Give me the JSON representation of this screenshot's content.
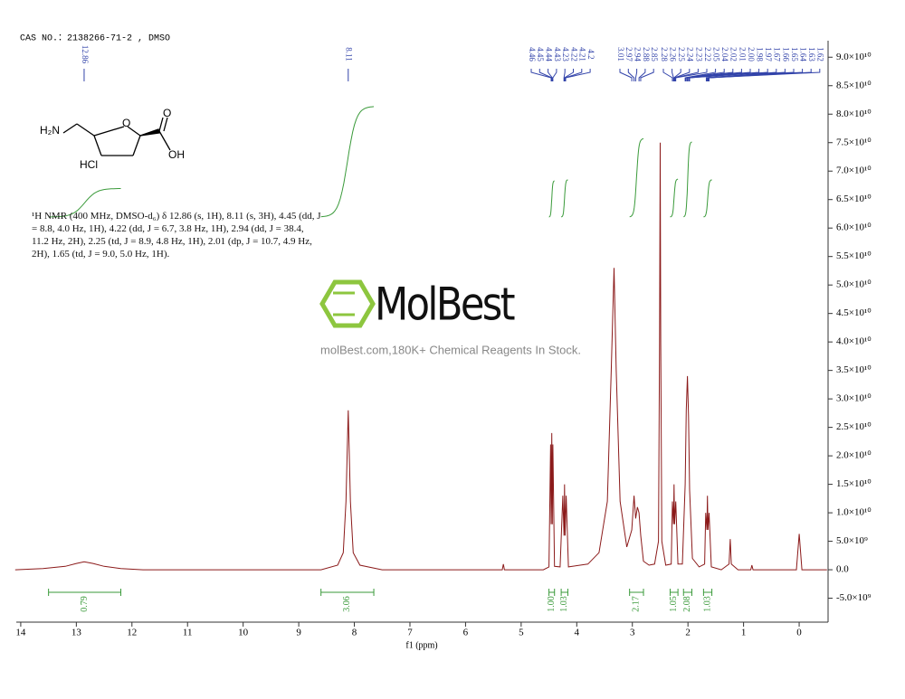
{
  "chart_data": {
    "type": "line",
    "note": "CAS NO.：2138266-71-2 , DMSO",
    "x_label": "f1 (ppm)",
    "color": "#8b1a1a",
    "x": [
      14.1,
      13.6,
      13.2,
      13.0,
      12.86,
      12.7,
      12.5,
      12.2,
      11.8,
      8.6,
      8.3,
      8.2,
      8.15,
      8.11,
      8.07,
      8.02,
      7.9,
      7.5,
      5.34,
      5.32,
      5.3,
      4.6,
      4.5,
      4.47,
      4.46,
      4.45,
      4.44,
      4.43,
      4.4,
      4.3,
      4.25,
      4.23,
      4.22,
      4.21,
      4.19,
      4.15,
      3.8,
      3.6,
      3.45,
      3.38,
      3.33,
      3.29,
      3.22,
      3.1,
      3.01,
      2.97,
      2.94,
      2.91,
      2.88,
      2.85,
      2.8,
      2.7,
      2.6,
      2.53,
      2.51,
      2.5,
      2.49,
      2.47,
      2.4,
      2.3,
      2.28,
      2.26,
      2.25,
      2.24,
      2.22,
      2.18,
      2.1,
      2.05,
      2.03,
      2.01,
      1.99,
      1.97,
      1.92,
      1.8,
      1.7,
      1.68,
      1.66,
      1.65,
      1.64,
      1.62,
      1.58,
      1.4,
      1.26,
      1.24,
      1.22,
      1.1,
      0.87,
      0.85,
      0.83,
      0.05,
      0.0,
      -0.05,
      -0.5
    ],
    "values": [
      0,
      200000000.0,
      600000000.0,
      1100000000.0,
      1400000000.0,
      1100000000.0,
      600000000.0,
      200000000.0,
      0,
      0,
      800000000.0,
      3000000000.0,
      12000000000.0,
      28000000000.0,
      12000000000.0,
      3000000000.0,
      800000000.0,
      0,
      0,
      1000000000.0,
      0,
      0,
      500000000.0,
      22000000000.0,
      8000000000.0,
      24000000000.0,
      8000000000.0,
      22000000000.0,
      600000000.0,
      500000000.0,
      13000000000.0,
      6000000000.0,
      15000000000.0,
      6000000000.0,
      13000000000.0,
      500000000.0,
      1000000000.0,
      3000000000.0,
      12000000000.0,
      35000000000.0,
      53000000000.0,
      35000000000.0,
      12000000000.0,
      4000000000.0,
      7000000000.0,
      13000000000.0,
      9000000000.0,
      11000000000.0,
      10000000000.0,
      6000000000.0,
      1500000000.0,
      800000000.0,
      1000000000.0,
      5000000000.0,
      40000000000.0,
      75000000000.0,
      40000000000.0,
      5000000000.0,
      800000000.0,
      1000000000.0,
      12000000000.0,
      8000000000.0,
      15000000000.0,
      8000000000.0,
      12000000000.0,
      1000000000.0,
      1000000000.0,
      15000000000.0,
      28000000000.0,
      34000000000.0,
      27000000000.0,
      14000000000.0,
      2000000000.0,
      500000000.0,
      1000000000.0,
      10000000000.0,
      7000000000.0,
      13000000000.0,
      7000000000.0,
      10000000000.0,
      500000000.0,
      0,
      1000000000.0,
      5400000000.0,
      1000000000.0,
      0,
      0,
      800000000.0,
      0,
      0,
      6300000000.0,
      0,
      0
    ],
    "xlim": [
      14.08,
      -0.52
    ],
    "ylim": [
      -9200000000.0,
      92900000000.0
    ],
    "xticks": [
      14,
      13,
      12,
      11,
      10,
      9,
      8,
      7,
      6,
      5,
      4,
      3,
      2,
      1,
      0
    ],
    "yticks": [
      {
        "value": -5000000000.0,
        "label": "-5.0×10⁹"
      },
      {
        "value": 0,
        "label": "0.0"
      },
      {
        "value": 5000000000.0,
        "label": "5.0×10⁹"
      },
      {
        "value": 10000000000.0,
        "label": "1.0×10¹⁰"
      },
      {
        "value": 15000000000.0,
        "label": "1.5×10¹⁰"
      },
      {
        "value": 20000000000.0,
        "label": "2.0×10¹⁰"
      },
      {
        "value": 25000000000.0,
        "label": "2.5×10¹⁰"
      },
      {
        "value": 30000000000.0,
        "label": "3.0×10¹⁰"
      },
      {
        "value": 35000000000.0,
        "label": "3.5×10¹⁰"
      },
      {
        "value": 40000000000.0,
        "label": "4.0×10¹⁰"
      },
      {
        "value": 45000000000.0,
        "label": "4.5×10¹⁰"
      },
      {
        "value": 50000000000.0,
        "label": "5.0×10¹⁰"
      },
      {
        "value": 55000000000.0,
        "label": "5.5×10¹⁰"
      },
      {
        "value": 60000000000.0,
        "label": "6.0×10¹⁰"
      },
      {
        "value": 65000000000.0,
        "label": "6.5×10¹⁰"
      },
      {
        "value": 70000000000.0,
        "label": "7.0×10¹⁰"
      },
      {
        "value": 75000000000.0,
        "label": "7.5×10¹⁰"
      },
      {
        "value": 80000000000.0,
        "label": "8.0×10¹⁰"
      },
      {
        "value": 85000000000.0,
        "label": "8.5×10¹⁰"
      },
      {
        "value": 90000000000.0,
        "label": "9.0×10¹⁰"
      }
    ],
    "peaks": [
      12.86,
      8.11,
      4.46,
      4.45,
      4.44,
      4.43,
      4.23,
      4.22,
      4.21,
      4.2,
      3.01,
      2.97,
      2.94,
      2.88,
      2.85,
      2.28,
      2.26,
      2.25,
      2.24,
      2.23,
      2.22,
      2.05,
      2.04,
      2.02,
      2.01,
      {
        "value": 2,
        "label": "2.00"
      },
      1.98,
      1.97,
      1.67,
      1.66,
      1.65,
      1.64,
      1.63,
      1.62
    ],
    "integrals": {
      "ranges": [
        [
          13.5,
          12.2
        ],
        [
          8.6,
          7.65
        ],
        [
          4.5,
          4.4
        ],
        [
          4.28,
          4.16
        ],
        [
          3.05,
          2.8
        ],
        [
          2.32,
          2.18
        ],
        [
          2.08,
          1.93
        ],
        [
          1.72,
          1.57
        ]
      ],
      "values": [
        0.79,
        3.06,
        1,
        1.03,
        2.17,
        1.05,
        2.08,
        1.03
      ],
      "value_labels": [
        "0.79",
        "3.06",
        "1.00",
        "1.03",
        "2.17",
        "1.05",
        "2.08",
        "1.03"
      ]
    },
    "nmr_text": "¹H NMR (400 MHz, DMSO-d₆) δ 12.86 (s, 1H), 8.11 (s, 3H), 4.45 (dd, J = 8.8, 4.0 Hz, 1H), 4.22 (dd, J = 6.7, 3.8 Hz, 1H), 2.94 (dd, J = 38.4, 11.2 Hz, 2H), 2.25 (td, J = 8.9, 4.8 Hz, 1H), 2.01 (dp, J = 10.7, 4.9 Hz, 2H), 1.65 (td, J = 9.0, 5.0 Hz, 1H).",
    "structure_labels": [
      "H₂N",
      "O",
      "OH",
      "O",
      "HCl"
    ],
    "watermark": {
      "brand": "MolBest",
      "slogan": "molBest.com,180K+ Chemical Reagents In Stock."
    }
  }
}
